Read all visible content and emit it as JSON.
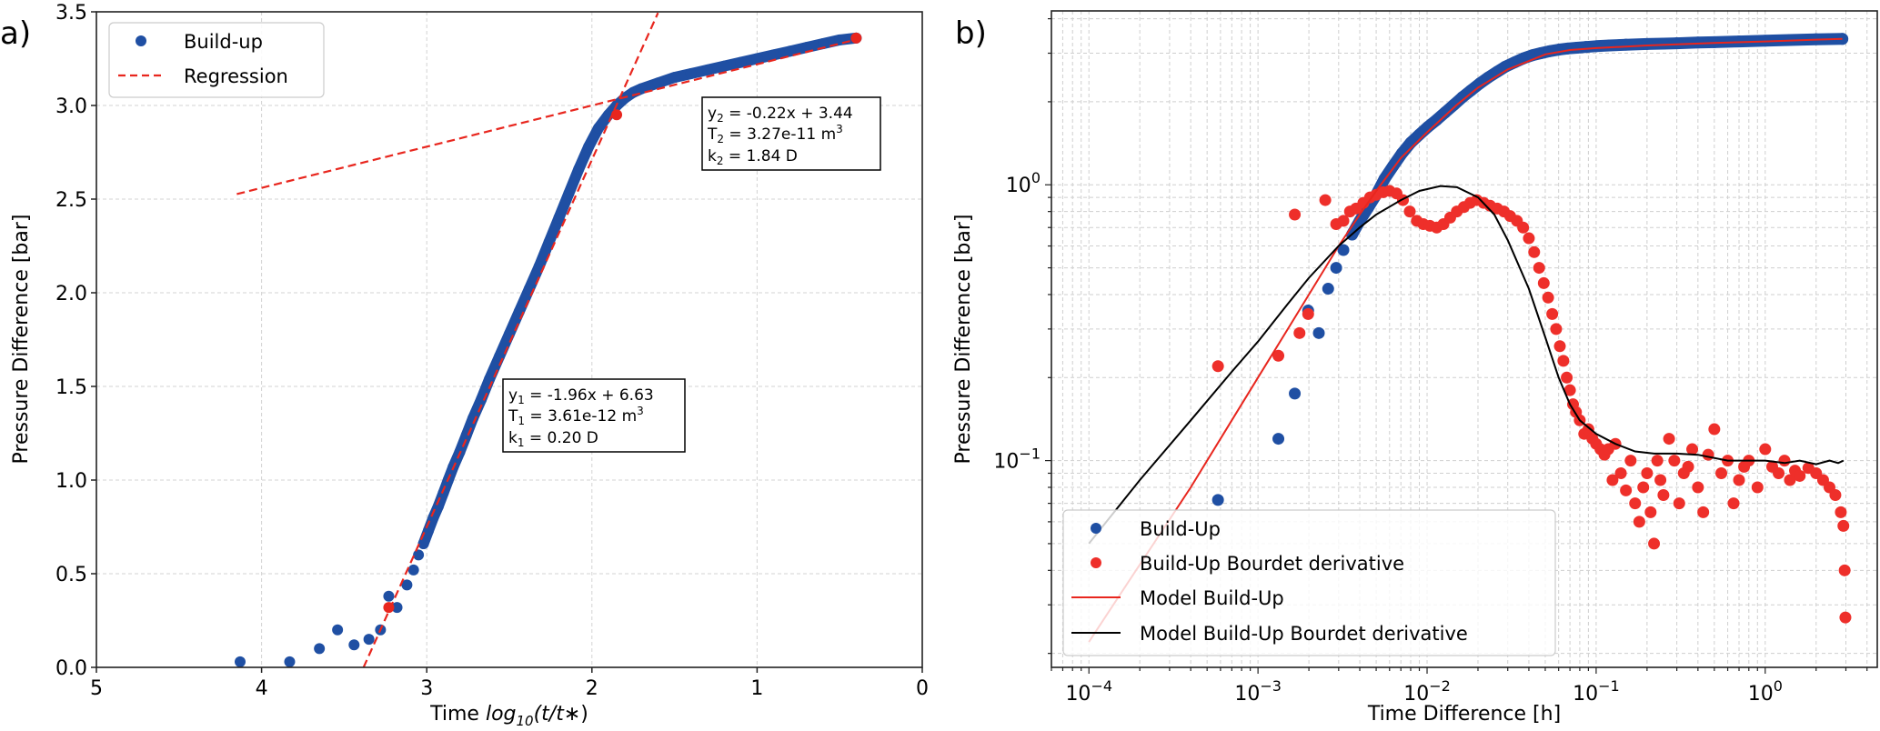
{
  "chart_data": [
    {
      "panel_label": "a)",
      "type": "scatter",
      "xlabel_prefix": "Time ",
      "xlabel_math": "log10(t/t*)",
      "ylabel": "Pressure Difference [bar]",
      "xlim": [
        5,
        0
      ],
      "ylim": [
        0,
        3.5
      ],
      "x_inverted": true,
      "xticks": [
        5,
        4,
        3,
        2,
        1,
        0
      ],
      "xtick_labels": [
        "5",
        "4",
        "3",
        "2",
        "1",
        "0"
      ],
      "yticks": [
        0,
        0.5,
        1.0,
        1.5,
        2.0,
        2.5,
        3.0,
        3.5
      ],
      "ytick_labels": [
        "0.0",
        "0.5",
        "1.0",
        "1.5",
        "2.0",
        "2.5",
        "3.0",
        "3.5"
      ],
      "grid": true,
      "legend": {
        "placement": "top-left",
        "entries": [
          {
            "label": "Build-up",
            "style": "marker",
            "color": "#1f4fa3"
          },
          {
            "label": "Regression",
            "style": "dashed",
            "color": "#e8261e"
          }
        ]
      },
      "series": [
        {
          "name": "Build-up",
          "kind": "scatter",
          "color": "#1f4fa3",
          "x": [
            4.13,
            3.83,
            3.65,
            3.54,
            3.44,
            3.35,
            3.28,
            3.23,
            3.18,
            3.12,
            3.08,
            3.05,
            3.02,
            2.99,
            2.96,
            2.93,
            2.9,
            2.87,
            2.84,
            2.8,
            2.76,
            2.72,
            2.67,
            2.62,
            2.56,
            2.5,
            2.44,
            2.38,
            2.32,
            2.26,
            2.2,
            2.14,
            2.08,
            2.02,
            1.96,
            1.9,
            1.85,
            1.8,
            1.75,
            1.7,
            1.6,
            1.5,
            1.4,
            1.3,
            1.2,
            1.1,
            1.0,
            0.9,
            0.8,
            0.7,
            0.6,
            0.5,
            0.4
          ],
          "y": [
            0.03,
            0.03,
            0.1,
            0.2,
            0.12,
            0.15,
            0.2,
            0.38,
            0.32,
            0.44,
            0.52,
            0.6,
            0.66,
            0.73,
            0.8,
            0.86,
            0.93,
            1.0,
            1.07,
            1.15,
            1.24,
            1.33,
            1.43,
            1.54,
            1.66,
            1.78,
            1.9,
            2.02,
            2.14,
            2.27,
            2.4,
            2.53,
            2.66,
            2.78,
            2.88,
            2.95,
            3.0,
            3.04,
            3.07,
            3.09,
            3.12,
            3.15,
            3.17,
            3.19,
            3.21,
            3.23,
            3.25,
            3.27,
            3.29,
            3.31,
            3.33,
            3.35,
            3.36
          ]
        },
        {
          "name": "Regression 1",
          "kind": "line",
          "style": "dashed",
          "color": "#e8261e",
          "slope": -1.96,
          "intercept": 6.63,
          "x": [
            3.383,
            1.6
          ]
        },
        {
          "name": "Regression 2",
          "kind": "line",
          "style": "dashed",
          "color": "#e8261e",
          "slope": -0.22,
          "intercept": 3.44,
          "x": [
            4.15,
            0.4
          ]
        },
        {
          "name": "Regression endpoints",
          "kind": "scatter",
          "color": "#e8261e",
          "x": [
            3.23,
            1.85,
            0.4
          ],
          "y": [
            0.32,
            2.95,
            3.36
          ]
        }
      ],
      "annotations": [
        {
          "lines": [
            {
              "var": "y",
              "sub": "1",
              "text": " = -1.96x + 6.63",
              "sup": ""
            },
            {
              "var": "T",
              "sub": "1",
              "text": " = 3.61e-12 m",
              "sup": "3"
            },
            {
              "var": "k",
              "sub": "1",
              "text": " = 0.20 D",
              "sup": ""
            }
          ]
        },
        {
          "lines": [
            {
              "var": "y",
              "sub": "2",
              "text": " = -0.22x + 3.44",
              "sup": ""
            },
            {
              "var": "T",
              "sub": "2",
              "text": " = 3.27e-11 m",
              "sup": "3"
            },
            {
              "var": "k",
              "sub": "2",
              "text": " = 1.84 D",
              "sup": ""
            }
          ]
        }
      ]
    },
    {
      "panel_label": "b)",
      "type": "scatter",
      "xlabel": "Time Difference [h]",
      "ylabel": "Pressure Difference [bar]",
      "xscale": "log",
      "yscale": "log",
      "xlim": [
        6e-05,
        4.6
      ],
      "ylim": [
        0.0178,
        4.27
      ],
      "xticks": [
        0.0001,
        0.001,
        0.01,
        0.1,
        1
      ],
      "xtick_labels": [
        {
          "base": "10",
          "exp": "−4"
        },
        {
          "base": "10",
          "exp": "−3"
        },
        {
          "base": "10",
          "exp": "−2"
        },
        {
          "base": "10",
          "exp": "−1"
        },
        {
          "base": "10",
          "exp": "0"
        }
      ],
      "yticks": [
        0.1,
        1
      ],
      "ytick_labels": [
        {
          "base": "10",
          "exp": "−1"
        },
        {
          "base": "10",
          "exp": "0"
        }
      ],
      "grid": true,
      "legend": {
        "placement": "bottom-left",
        "entries": [
          {
            "label": "Build-Up",
            "style": "marker",
            "color": "#1f4fa3"
          },
          {
            "label": "Build-Up Bourdet derivative",
            "style": "marker",
            "color": "#ee2f2a"
          },
          {
            "label": "Model Build-Up",
            "style": "line",
            "color": "#e8261e"
          },
          {
            "label": "Model Build-Up Bourdet derivative",
            "style": "line",
            "color": "#000000"
          }
        ]
      },
      "series": [
        {
          "name": "Build-Up",
          "kind": "scatter",
          "color": "#1f4fa3",
          "x": [
            0.00058,
            0.00132,
            0.00165,
            0.00198,
            0.00229,
            0.0026,
            0.0029,
            0.0032,
            0.0036,
            0.004,
            0.0045,
            0.005,
            0.0056,
            0.0063,
            0.0071,
            0.008,
            0.009,
            0.0101,
            0.0114,
            0.0128,
            0.0144,
            0.0162,
            0.0182,
            0.0205,
            0.023,
            0.026,
            0.029,
            0.033,
            0.037,
            0.042,
            0.047,
            0.053,
            0.06,
            0.068,
            0.077,
            0.087,
            0.1,
            0.12,
            0.15,
            0.2,
            0.25,
            0.3,
            0.4,
            0.5,
            0.7,
            1.0,
            1.4,
            2.0,
            2.86
          ],
          "y": [
            0.072,
            0.12,
            0.175,
            0.35,
            0.29,
            0.42,
            0.5,
            0.58,
            0.66,
            0.74,
            0.83,
            0.92,
            1.05,
            1.17,
            1.3,
            1.42,
            1.52,
            1.62,
            1.72,
            1.83,
            1.95,
            2.08,
            2.2,
            2.33,
            2.45,
            2.57,
            2.68,
            2.78,
            2.87,
            2.95,
            3.0,
            3.05,
            3.09,
            3.12,
            3.14,
            3.16,
            3.18,
            3.2,
            3.22,
            3.24,
            3.25,
            3.26,
            3.28,
            3.29,
            3.31,
            3.33,
            3.35,
            3.37,
            3.38
          ]
        },
        {
          "name": "Build-Up Bourdet derivative",
          "kind": "scatter",
          "color": "#ee2f2a",
          "x": [
            0.00058,
            0.00132,
            0.00165,
            0.00176,
            0.00198,
            0.0025,
            0.0029,
            0.0032,
            0.0035,
            0.0038,
            0.0042,
            0.0046,
            0.005,
            0.0055,
            0.006,
            0.0066,
            0.0072,
            0.0079,
            0.0087,
            0.0095,
            0.0104,
            0.0114,
            0.0125,
            0.0137,
            0.015,
            0.0165,
            0.018,
            0.0197,
            0.0216,
            0.0236,
            0.026,
            0.0285,
            0.031,
            0.034,
            0.037,
            0.04,
            0.043,
            0.046,
            0.049,
            0.052,
            0.055,
            0.058,
            0.061,
            0.064,
            0.067,
            0.07,
            0.073,
            0.076,
            0.08,
            0.085,
            0.09,
            0.095,
            0.1,
            0.106,
            0.112,
            0.118,
            0.125,
            0.13,
            0.14,
            0.15,
            0.16,
            0.17,
            0.18,
            0.19,
            0.2,
            0.21,
            0.22,
            0.23,
            0.24,
            0.25,
            0.27,
            0.29,
            0.31,
            0.33,
            0.35,
            0.37,
            0.4,
            0.43,
            0.46,
            0.5,
            0.55,
            0.6,
            0.65,
            0.7,
            0.75,
            0.8,
            0.9,
            1.0,
            1.1,
            1.2,
            1.3,
            1.4,
            1.5,
            1.6,
            1.8,
            2.0,
            2.2,
            2.4,
            2.6,
            2.8,
            2.9,
            2.95,
            2.98
          ],
          "y": [
            0.22,
            0.24,
            0.78,
            0.29,
            0.34,
            0.88,
            0.72,
            0.74,
            0.8,
            0.82,
            0.86,
            0.9,
            0.92,
            0.94,
            0.95,
            0.93,
            0.88,
            0.8,
            0.74,
            0.72,
            0.71,
            0.7,
            0.72,
            0.76,
            0.8,
            0.83,
            0.86,
            0.88,
            0.86,
            0.84,
            0.82,
            0.8,
            0.77,
            0.74,
            0.7,
            0.64,
            0.57,
            0.5,
            0.44,
            0.39,
            0.34,
            0.3,
            0.26,
            0.23,
            0.2,
            0.18,
            0.16,
            0.15,
            0.14,
            0.125,
            0.13,
            0.12,
            0.115,
            0.11,
            0.105,
            0.11,
            0.085,
            0.115,
            0.09,
            0.078,
            0.1,
            0.07,
            0.06,
            0.08,
            0.09,
            0.065,
            0.05,
            0.1,
            0.085,
            0.075,
            0.12,
            0.1,
            0.07,
            0.09,
            0.095,
            0.11,
            0.08,
            0.065,
            0.105,
            0.13,
            0.09,
            0.1,
            0.07,
            0.085,
            0.095,
            0.1,
            0.08,
            0.11,
            0.095,
            0.09,
            0.1,
            0.085,
            0.092,
            0.088,
            0.094,
            0.09,
            0.085,
            0.08,
            0.075,
            0.065,
            0.058,
            0.04,
            0.027
          ]
        },
        {
          "name": "Model Build-Up",
          "kind": "line",
          "color": "#e8261e",
          "x": [
            0.0001,
            0.0002,
            0.0004,
            0.0007,
            0.001,
            0.0015,
            0.002,
            0.003,
            0.004,
            0.005,
            0.007,
            0.01,
            0.015,
            0.02,
            0.03,
            0.05,
            0.07,
            0.1,
            0.2,
            0.5,
            1.0,
            2.0,
            2.86
          ],
          "y": [
            0.022,
            0.042,
            0.08,
            0.14,
            0.2,
            0.3,
            0.4,
            0.6,
            0.78,
            0.95,
            1.25,
            1.55,
            1.95,
            2.25,
            2.62,
            2.97,
            3.08,
            3.13,
            3.2,
            3.27,
            3.31,
            3.36,
            3.38
          ]
        },
        {
          "name": "Model Build-Up Bourdet derivative",
          "kind": "line",
          "color": "#000000",
          "x": [
            0.0001,
            0.0002,
            0.0004,
            0.0007,
            0.001,
            0.0015,
            0.002,
            0.003,
            0.004,
            0.005,
            0.007,
            0.009,
            0.012,
            0.015,
            0.02,
            0.025,
            0.03,
            0.04,
            0.05,
            0.06,
            0.07,
            0.08,
            0.1,
            0.13,
            0.17,
            0.22,
            0.3,
            0.4,
            0.6,
            0.8,
            1.0,
            1.3,
            1.6,
            2.0,
            2.4,
            2.7,
            2.9
          ],
          "y": [
            0.05,
            0.085,
            0.14,
            0.21,
            0.27,
            0.37,
            0.46,
            0.6,
            0.7,
            0.78,
            0.88,
            0.95,
            0.99,
            0.98,
            0.9,
            0.78,
            0.63,
            0.42,
            0.28,
            0.2,
            0.16,
            0.14,
            0.125,
            0.115,
            0.108,
            0.106,
            0.106,
            0.105,
            0.1,
            0.1,
            0.1,
            0.098,
            0.1,
            0.097,
            0.1,
            0.098,
            0.1
          ]
        }
      ]
    }
  ]
}
